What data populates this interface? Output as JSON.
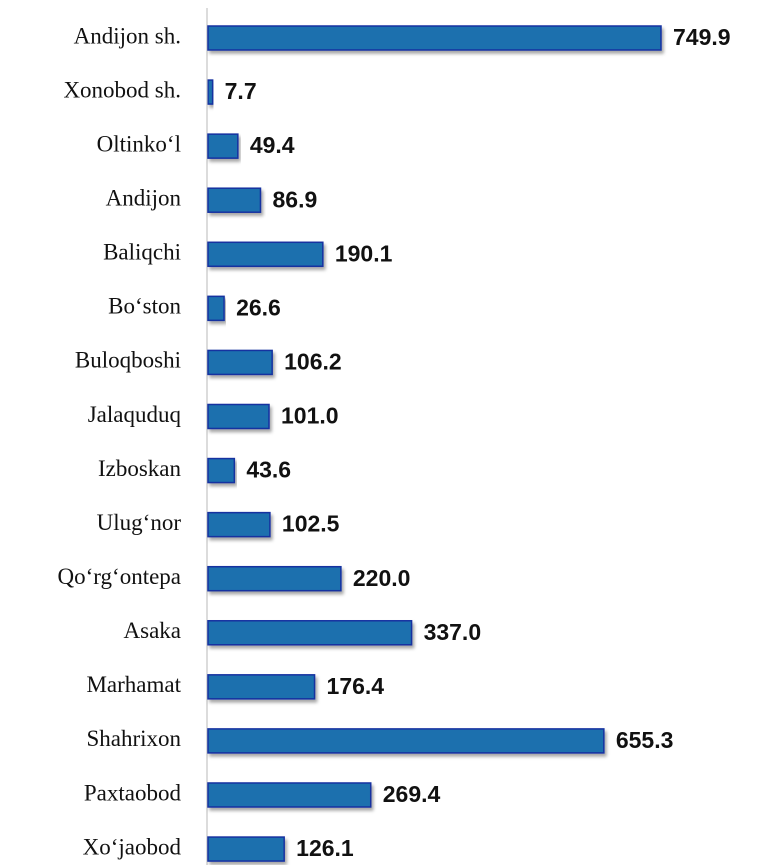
{
  "chart_data": {
    "type": "barh",
    "categories": [
      "Andijon sh.",
      "Xonobod sh.",
      "Oltinko‘l",
      "Andijon",
      "Baliqchi",
      "Bo‘ston",
      "Buloqboshi",
      "Jalaquduq",
      "Izboskan",
      "Ulug‘nor",
      "Qo‘rg‘ontepa",
      "Asaka",
      "Marhamat",
      "Shahrixon",
      "Paxtaobod",
      "Xo‘jaobod"
    ],
    "values": [
      749.9,
      7.7,
      49.4,
      86.9,
      190.1,
      26.6,
      106.2,
      101.0,
      43.6,
      102.5,
      220.0,
      337.0,
      176.4,
      655.3,
      269.4,
      126.1
    ],
    "value_labels": [
      "749.9",
      "7.7",
      "49.4",
      "86.9",
      "190.1",
      "26.6",
      "106.2",
      "101.0",
      "43.6",
      "102.5",
      "220.0",
      "337.0",
      "176.4",
      "655.3",
      "269.4",
      "126.1"
    ],
    "color": "#1e6fae"
  }
}
